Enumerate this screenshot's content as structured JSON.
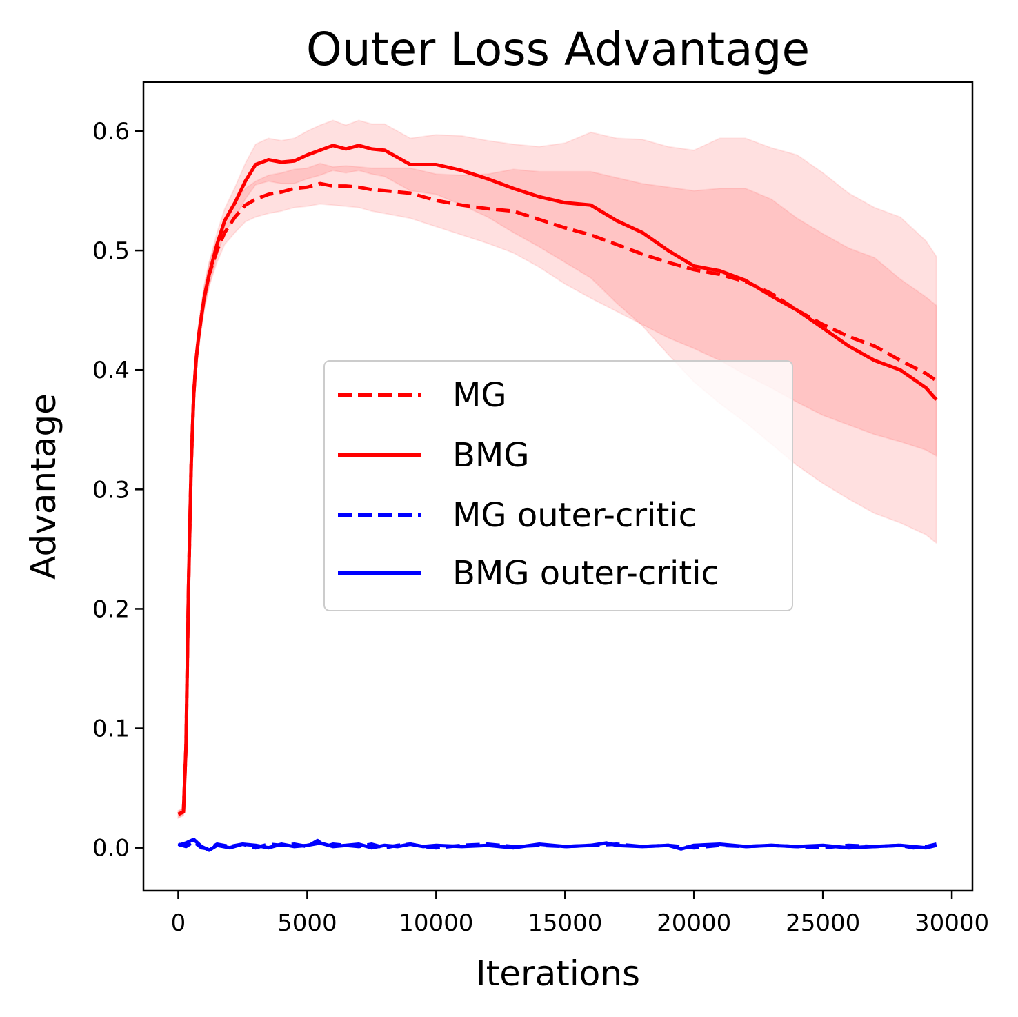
{
  "chart_data": {
    "type": "line",
    "title": "Outer Loss Advantage",
    "xlabel": "Iterations",
    "ylabel": "Advantage",
    "xlim": [
      -1350,
      30800
    ],
    "ylim": [
      -0.036,
      0.641
    ],
    "xticks": [
      0,
      5000,
      10000,
      15000,
      20000,
      25000,
      30000
    ],
    "xtick_labels": [
      "0",
      "5000",
      "10000",
      "15000",
      "20000",
      "25000",
      "30000"
    ],
    "yticks": [
      0.0,
      0.1,
      0.2,
      0.3,
      0.4,
      0.5,
      0.6
    ],
    "ytick_labels": [
      "0.0",
      "0.1",
      "0.2",
      "0.3",
      "0.4",
      "0.5",
      "0.6"
    ],
    "grid": false,
    "legend_position": "center",
    "legend_labels": [
      "MG",
      "BMG",
      "MG outer-critic",
      "BMG outer-critic"
    ],
    "series": [
      {
        "name": "MG",
        "color": "#ff0000",
        "dash": "dashed",
        "x": [
          0,
          200,
          300,
          400,
          500,
          600,
          700,
          800,
          1000,
          1200,
          1500,
          1800,
          2200,
          2600,
          3000,
          3500,
          4000,
          4500,
          5000,
          5500,
          6000,
          6500,
          7000,
          7500,
          8000,
          9000,
          10000,
          11000,
          12000,
          13000,
          14000,
          15000,
          16000,
          17000,
          18000,
          19000,
          20000,
          21000,
          22000,
          23000,
          24000,
          25000,
          26000,
          27000,
          28000,
          29000,
          29400
        ],
        "y": [
          0.028,
          0.03,
          0.085,
          0.22,
          0.32,
          0.38,
          0.41,
          0.43,
          0.46,
          0.48,
          0.5,
          0.515,
          0.528,
          0.538,
          0.543,
          0.547,
          0.549,
          0.552,
          0.553,
          0.556,
          0.554,
          0.554,
          0.553,
          0.551,
          0.55,
          0.548,
          0.542,
          0.538,
          0.535,
          0.533,
          0.526,
          0.519,
          0.513,
          0.505,
          0.497,
          0.49,
          0.484,
          0.48,
          0.474,
          0.464,
          0.45,
          0.438,
          0.428,
          0.42,
          0.408,
          0.397,
          0.391
        ],
        "band_lower": [
          0.025,
          0.027,
          0.08,
          0.21,
          0.31,
          0.37,
          0.4,
          0.42,
          0.45,
          0.47,
          0.49,
          0.505,
          0.515,
          0.524,
          0.528,
          0.531,
          0.533,
          0.536,
          0.537,
          0.539,
          0.538,
          0.537,
          0.536,
          0.533,
          0.531,
          0.527,
          0.52,
          0.513,
          0.506,
          0.498,
          0.486,
          0.472,
          0.46,
          0.449,
          0.438,
          0.427,
          0.418,
          0.408,
          0.396,
          0.385,
          0.373,
          0.362,
          0.354,
          0.346,
          0.34,
          0.333,
          0.328
        ],
        "band_upper": [
          0.031,
          0.033,
          0.09,
          0.23,
          0.33,
          0.39,
          0.42,
          0.44,
          0.47,
          0.49,
          0.51,
          0.525,
          0.541,
          0.552,
          0.558,
          0.563,
          0.565,
          0.568,
          0.569,
          0.573,
          0.57,
          0.571,
          0.57,
          0.569,
          0.569,
          0.569,
          0.564,
          0.563,
          0.564,
          0.568,
          0.566,
          0.566,
          0.566,
          0.561,
          0.556,
          0.553,
          0.55,
          0.552,
          0.552,
          0.543,
          0.527,
          0.514,
          0.502,
          0.494,
          0.476,
          0.461,
          0.454
        ]
      },
      {
        "name": "BMG",
        "color": "#ff0000",
        "dash": "solid",
        "x": [
          0,
          200,
          300,
          400,
          500,
          600,
          700,
          800,
          1000,
          1200,
          1500,
          1800,
          2200,
          2600,
          3000,
          3500,
          4000,
          4500,
          5000,
          5500,
          6000,
          6500,
          7000,
          7500,
          8000,
          9000,
          10000,
          11000,
          12000,
          13000,
          14000,
          15000,
          16000,
          17000,
          18000,
          19000,
          20000,
          21000,
          22000,
          23000,
          24000,
          25000,
          26000,
          27000,
          28000,
          29000,
          29400
        ],
        "y": [
          0.028,
          0.03,
          0.085,
          0.22,
          0.32,
          0.38,
          0.41,
          0.43,
          0.46,
          0.48,
          0.505,
          0.525,
          0.54,
          0.558,
          0.572,
          0.576,
          0.574,
          0.575,
          0.58,
          0.584,
          0.588,
          0.585,
          0.588,
          0.585,
          0.584,
          0.572,
          0.572,
          0.567,
          0.56,
          0.552,
          0.545,
          0.54,
          0.538,
          0.525,
          0.515,
          0.5,
          0.487,
          0.483,
          0.475,
          0.462,
          0.45,
          0.435,
          0.42,
          0.408,
          0.4,
          0.385,
          0.375
        ],
        "band_lower": [
          0.025,
          0.027,
          0.08,
          0.21,
          0.31,
          0.37,
          0.4,
          0.42,
          0.45,
          0.47,
          0.495,
          0.515,
          0.527,
          0.543,
          0.555,
          0.558,
          0.556,
          0.556,
          0.56,
          0.563,
          0.567,
          0.565,
          0.567,
          0.564,
          0.562,
          0.55,
          0.547,
          0.538,
          0.528,
          0.515,
          0.503,
          0.49,
          0.477,
          0.456,
          0.437,
          0.413,
          0.39,
          0.372,
          0.356,
          0.338,
          0.32,
          0.305,
          0.292,
          0.28,
          0.272,
          0.262,
          0.255
        ],
        "band_upper": [
          0.031,
          0.033,
          0.09,
          0.23,
          0.33,
          0.39,
          0.42,
          0.44,
          0.47,
          0.49,
          0.515,
          0.535,
          0.553,
          0.573,
          0.589,
          0.594,
          0.592,
          0.594,
          0.6,
          0.605,
          0.609,
          0.605,
          0.609,
          0.606,
          0.606,
          0.594,
          0.597,
          0.596,
          0.592,
          0.589,
          0.587,
          0.59,
          0.599,
          0.594,
          0.593,
          0.587,
          0.584,
          0.594,
          0.594,
          0.586,
          0.58,
          0.565,
          0.548,
          0.536,
          0.528,
          0.508,
          0.495
        ]
      },
      {
        "name": "MG outer-critic",
        "color": "#0000ff",
        "dash": "dashed",
        "x": [
          0,
          300,
          600,
          900,
          1200,
          1500,
          2000,
          2500,
          3000,
          3500,
          4000,
          4500,
          5000,
          5400,
          5700,
          6000,
          6500,
          7000,
          7500,
          8000,
          8500,
          9000,
          9500,
          10000,
          11000,
          12000,
          13000,
          14000,
          15000,
          16000,
          17000,
          18000,
          19000,
          20000,
          21000,
          22000,
          23000,
          24000,
          25000,
          26000,
          27000,
          28000,
          28500,
          29000,
          29400
        ],
        "y": [
          0.003,
          0.001,
          0.005,
          0.0,
          -0.001,
          0.003,
          0.001,
          0.003,
          0.0,
          0.003,
          0.002,
          0.003,
          0.001,
          0.006,
          0.001,
          0.003,
          0.002,
          0.001,
          0.003,
          0.0,
          0.002,
          0.003,
          0.001,
          0.0,
          0.002,
          0.003,
          0.001,
          0.002,
          0.001,
          0.002,
          0.003,
          0.001,
          0.002,
          0.0,
          0.002,
          0.001,
          0.002,
          0.001,
          0.0,
          0.002,
          0.001,
          0.002,
          0.0,
          0.001,
          0.003
        ]
      },
      {
        "name": "BMG outer-critic",
        "color": "#0000ff",
        "dash": "solid",
        "x": [
          0,
          300,
          600,
          900,
          1200,
          1500,
          2000,
          2500,
          3000,
          3500,
          4000,
          4500,
          5000,
          5500,
          6000,
          6500,
          7000,
          7500,
          8000,
          8500,
          9000,
          9500,
          10000,
          11000,
          12000,
          13000,
          14000,
          15000,
          16000,
          16600,
          17000,
          18000,
          19000,
          19500,
          20000,
          21000,
          22000,
          23000,
          24000,
          25000,
          26000,
          27000,
          28000,
          29000,
          29400
        ],
        "y": [
          0.002,
          0.004,
          0.007,
          0.001,
          -0.002,
          0.002,
          0.0,
          0.003,
          0.002,
          0.0,
          0.003,
          0.001,
          0.002,
          0.004,
          0.001,
          0.002,
          0.003,
          0.0,
          0.002,
          0.001,
          0.003,
          0.001,
          0.002,
          0.001,
          0.002,
          0.0,
          0.003,
          0.001,
          0.002,
          0.004,
          0.002,
          0.001,
          0.002,
          -0.001,
          0.002,
          0.003,
          0.001,
          0.002,
          0.001,
          0.002,
          0.0,
          0.001,
          0.002,
          0.0,
          0.002
        ]
      }
    ]
  }
}
